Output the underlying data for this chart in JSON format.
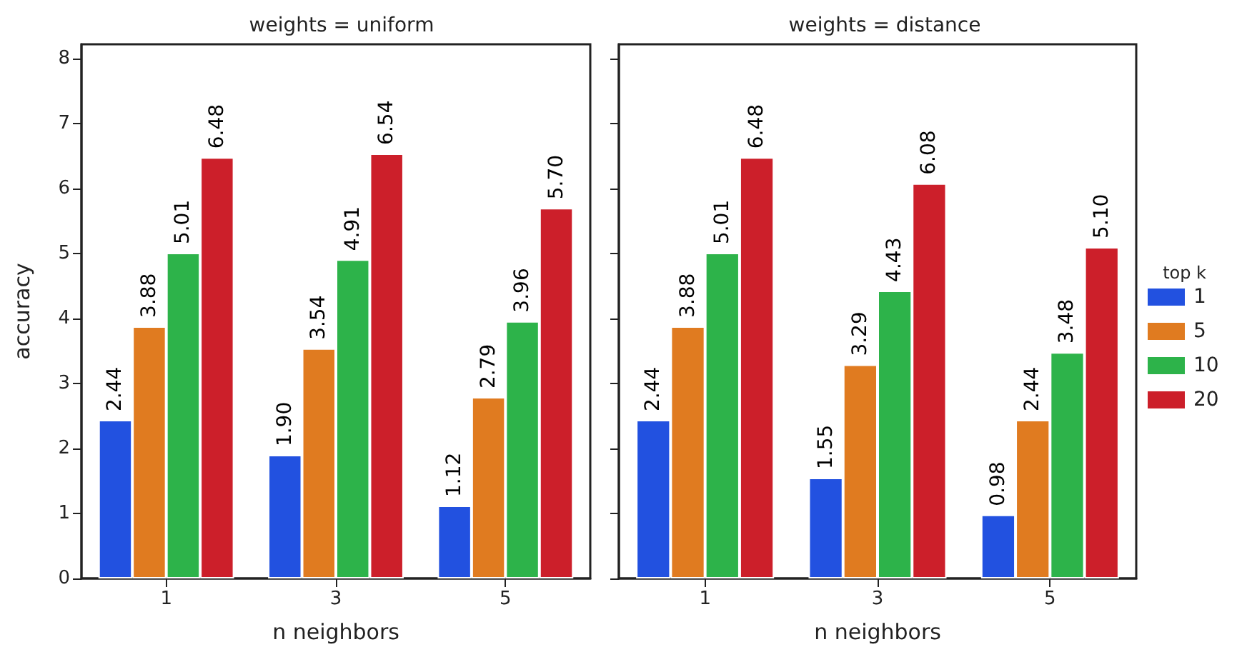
{
  "chart_data": [
    {
      "type": "bar",
      "title": "weights = uniform",
      "xlabel": "n neighbors",
      "ylabel": "accuracy",
      "categories": [
        "1",
        "3",
        "5"
      ],
      "ylim": [
        0,
        8.22
      ],
      "yticks": [
        0,
        1,
        2,
        3,
        4,
        5,
        6,
        7,
        8
      ],
      "grid": false,
      "legend": false,
      "series": [
        {
          "color": "#2251e0",
          "values": [
            2.44,
            1.9,
            1.12
          ],
          "value_labels": [
            "2.44",
            "1.90",
            "1.12"
          ]
        },
        {
          "color": "#e07b20",
          "values": [
            3.88,
            3.54,
            2.79
          ],
          "value_labels": [
            "3.88",
            "3.54",
            "2.79"
          ]
        },
        {
          "color": "#2db34a",
          "values": [
            5.01,
            4.91,
            3.96
          ],
          "value_labels": [
            "5.01",
            "4.91",
            "3.96"
          ]
        },
        {
          "color": "#cc1f2a",
          "values": [
            6.48,
            6.54,
            5.7
          ],
          "value_labels": [
            "6.48",
            "6.54",
            "5.70"
          ]
        }
      ]
    },
    {
      "type": "bar",
      "title": "weights = distance",
      "xlabel": "n neighbors",
      "legend_title": "top k",
      "categories": [
        "1",
        "3",
        "5"
      ],
      "ylim": [
        0,
        8.22
      ],
      "yticks": [
        0,
        1,
        2,
        3,
        4,
        5,
        6,
        7,
        8
      ],
      "grid": false,
      "legend": "right",
      "tick_labels": "x",
      "series": [
        {
          "name": "1",
          "color": "#2251e0",
          "values": [
            2.44,
            1.55,
            0.98
          ],
          "value_labels": [
            "2.44",
            "1.55",
            "0.98"
          ]
        },
        {
          "name": "5",
          "color": "#e07b20",
          "values": [
            3.88,
            3.29,
            2.44
          ],
          "value_labels": [
            "3.88",
            "3.29",
            "2.44"
          ]
        },
        {
          "name": "10",
          "color": "#2db34a",
          "values": [
            5.01,
            4.43,
            3.48
          ],
          "value_labels": [
            "5.01",
            "4.43",
            "3.48"
          ]
        },
        {
          "name": "20",
          "color": "#cc1f2a",
          "values": [
            6.48,
            6.08,
            5.1
          ],
          "value_labels": [
            "6.48",
            "6.08",
            "5.10"
          ]
        }
      ]
    }
  ]
}
